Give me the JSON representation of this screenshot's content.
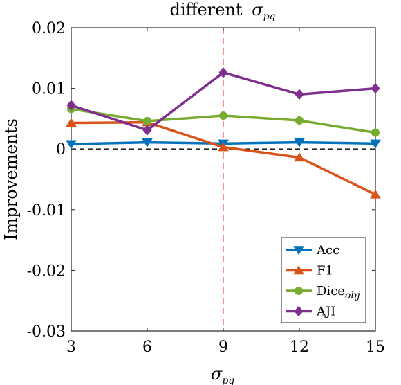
{
  "chart_data": {
    "type": "line",
    "title": "different",
    "title_symbol": "σ",
    "title_symbol_sub": "pq",
    "xlabel_symbol": "σ",
    "xlabel_symbol_sub": "pq",
    "ylabel": "Improvements",
    "x": [
      3,
      6,
      9,
      12,
      15
    ],
    "x_tick_labels": [
      "3",
      "6",
      "9",
      "12",
      "15"
    ],
    "y_ticks": [
      0.02,
      0.01,
      0,
      -0.01,
      -0.02,
      -0.03
    ],
    "y_tick_labels": [
      "0.02",
      "0.01",
      "0",
      "-0.01",
      "-0.02",
      "-0.03"
    ],
    "xlim": [
      3,
      15
    ],
    "ylim": [
      -0.03,
      0.02
    ],
    "grid": false,
    "legend_position": "bottom-right",
    "reference_lines": [
      {
        "orientation": "horizontal",
        "value": 0,
        "style": "dashed",
        "color": "#000000"
      },
      {
        "orientation": "vertical",
        "value": 9,
        "style": "dashed",
        "color": "#ff6e6e"
      }
    ],
    "series": [
      {
        "name": "Acc",
        "name_sub": "",
        "marker": "triangle-down",
        "color": "#0072BD",
        "values": [
          0.0008,
          0.0011,
          0.0009,
          0.0011,
          0.0009
        ]
      },
      {
        "name": "F1",
        "name_sub": "",
        "marker": "triangle-up",
        "color": "#D95319",
        "values": [
          0.0043,
          0.0044,
          0.0003,
          -0.0014,
          -0.0075
        ]
      },
      {
        "name": "Dice",
        "name_sub": "obj",
        "marker": "circle",
        "color": "#77AC30",
        "values": [
          0.0066,
          0.0046,
          0.0055,
          0.0047,
          0.0027
        ]
      },
      {
        "name": "AJI",
        "name_sub": "",
        "marker": "diamond",
        "color": "#7E2F8E",
        "values": [
          0.0072,
          0.0031,
          0.0126,
          0.009,
          0.01
        ]
      }
    ]
  }
}
